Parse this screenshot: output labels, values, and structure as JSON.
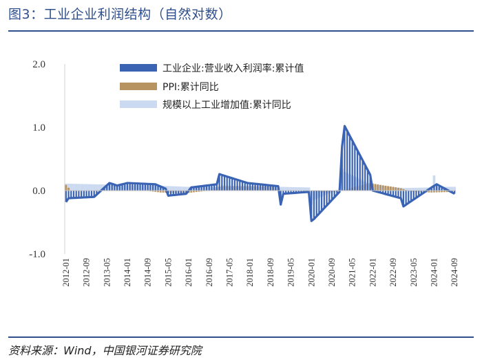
{
  "title": "图3：工业企业利润结构（自然对数）",
  "source": "资料来源：Wind，中国银河证券研究院",
  "colors": {
    "title": "#2e4f8c",
    "profit": "#3a63b4",
    "ppi": "#b79361",
    "industrial": "#cbdaf0",
    "axis": "#bfbfbf"
  },
  "chart_data": {
    "type": "bar+line",
    "title": "",
    "xlabel": "",
    "ylabel": "",
    "ylim": [
      -1.0,
      2.0
    ],
    "yticks": [
      "2.0",
      "1.0",
      "0.0",
      "-1.0"
    ],
    "grid": false,
    "legend_position": "top-center",
    "x_tick_labels": [
      "2012-01",
      "2012-09",
      "2013-05",
      "2014-01",
      "2014-09",
      "2015-05",
      "2016-01",
      "2016-09",
      "2017-05",
      "2018-01",
      "2018-09",
      "2019-05",
      "2020-01",
      "2020-09",
      "2021-05",
      "2022-01",
      "2022-09",
      "2023-05",
      "2024-01",
      "2024-09"
    ],
    "series": [
      {
        "name": "工业企业:营业收入利润率:累计值",
        "chart_type": "bar+line",
        "color": "#3a63b4",
        "anchors": [
          [
            "2012-01",
            -0.18
          ],
          [
            "2012-02",
            -0.12
          ],
          [
            "2012-12",
            -0.1
          ],
          [
            "2013-06",
            0.12
          ],
          [
            "2013-09",
            0.08
          ],
          [
            "2014-01",
            0.12
          ],
          [
            "2014-12",
            0.1
          ],
          [
            "2015-04",
            0.03
          ],
          [
            "2015-05",
            -0.08
          ],
          [
            "2015-12",
            -0.05
          ],
          [
            "2016-02",
            0.05
          ],
          [
            "2016-12",
            0.1
          ],
          [
            "2017-01",
            0.26
          ],
          [
            "2017-12",
            0.12
          ],
          [
            "2018-12",
            0.07
          ],
          [
            "2019-01",
            -0.22
          ],
          [
            "2019-02",
            -0.05
          ],
          [
            "2019-12",
            -0.02
          ],
          [
            "2020-01",
            -0.48
          ],
          [
            "2020-02",
            -0.45
          ],
          [
            "2020-12",
            -0.02
          ],
          [
            "2021-01",
            0.7
          ],
          [
            "2021-02",
            1.02
          ],
          [
            "2021-12",
            0.25
          ],
          [
            "2022-01",
            0.0
          ],
          [
            "2022-12",
            -0.12
          ],
          [
            "2023-01",
            -0.25
          ],
          [
            "2023-12",
            0.05
          ],
          [
            "2024-02",
            0.1
          ],
          [
            "2024-09",
            -0.05
          ]
        ]
      },
      {
        "name": "PPI:累计同比",
        "chart_type": "bar",
        "color": "#b79361",
        "anchors": [
          [
            "2012-01",
            0.09
          ],
          [
            "2012-03",
            0.0
          ],
          [
            "2012-12",
            0.0
          ],
          [
            "2014-08",
            0.0
          ],
          [
            "2015-02",
            -0.03
          ],
          [
            "2015-12",
            -0.04
          ],
          [
            "2016-09",
            0.0
          ],
          [
            "2017-02",
            0.08
          ],
          [
            "2017-12",
            0.07
          ],
          [
            "2018-10",
            0.07
          ],
          [
            "2019-01",
            0.0
          ],
          [
            "2019-12",
            0.0
          ],
          [
            "2020-05",
            -0.03
          ],
          [
            "2020-12",
            -0.02
          ],
          [
            "2021-06",
            0.06
          ],
          [
            "2021-12",
            0.12
          ],
          [
            "2022-04",
            0.09
          ],
          [
            "2022-12",
            0.04
          ],
          [
            "2023-04",
            -0.02
          ],
          [
            "2023-12",
            -0.03
          ],
          [
            "2024-09",
            -0.02
          ]
        ]
      },
      {
        "name": "规模以上工业增加值:累计同比",
        "chart_type": "bar",
        "color": "#cbdaf0",
        "anchors": [
          [
            "2012-01",
            0.11
          ],
          [
            "2012-12",
            0.1
          ],
          [
            "2014-12",
            0.08
          ],
          [
            "2015-12",
            0.06
          ],
          [
            "2016-12",
            0.06
          ],
          [
            "2017-12",
            0.07
          ],
          [
            "2018-12",
            0.06
          ],
          [
            "2019-12",
            0.05
          ],
          [
            "2020-01",
            -0.22
          ],
          [
            "2020-02",
            -0.15
          ],
          [
            "2020-12",
            0.03
          ],
          [
            "2021-01",
            0.35
          ],
          [
            "2021-02",
            0.3
          ],
          [
            "2021-12",
            0.1
          ],
          [
            "2022-12",
            0.04
          ],
          [
            "2023-12",
            0.05
          ],
          [
            "2024-01",
            0.24
          ],
          [
            "2024-02",
            0.06
          ],
          [
            "2024-09",
            0.06
          ]
        ]
      }
    ]
  }
}
